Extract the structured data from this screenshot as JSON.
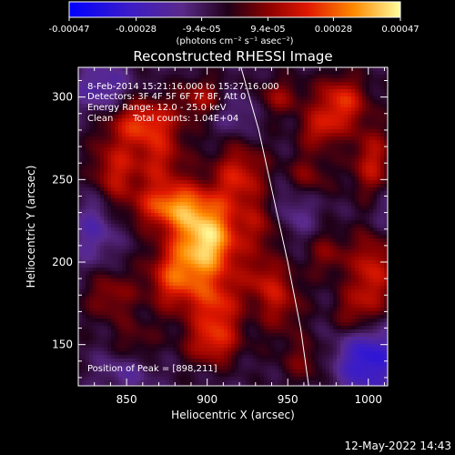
{
  "chart_data": {
    "type": "heatmap",
    "title": "Reconstructed RHESSI Image",
    "xlabel": "Heliocentric X (arcsec)",
    "ylabel": "Heliocentric Y (arcsec)",
    "xlim": [
      820,
      1012
    ],
    "ylim": [
      125,
      318
    ],
    "x_ticks": [
      850,
      900,
      950,
      1000
    ],
    "y_ticks": [
      150,
      200,
      250,
      300
    ],
    "colorbar": {
      "ticks": [
        "-0.00047",
        "-0.00028",
        "-9.4e-05",
        "9.4e-05",
        "0.00028",
        "0.00047"
      ],
      "tick_values": [
        -0.00047,
        -0.00028,
        -9.4e-05,
        9.4e-05,
        0.00028,
        0.00047
      ],
      "range": [
        -0.00047,
        0.00047
      ],
      "unit_label": "(photons cm⁻² s⁻¹ asec⁻²)"
    },
    "annotations": [
      "8-Feb-2014 15:21:16.000 to 15:27:16.000",
      "Detectors: 3F 4F 5F 6F 7F 8F, Att 0",
      "Energy Range: 12.0 - 25.0 keV",
      "Clean",
      "Total counts: 1.04E+04",
      "Position of Peak = [898,211]"
    ],
    "peak": {
      "x": 898,
      "y": 211
    },
    "limb_curve": [
      [
        921,
        318
      ],
      [
        932,
        280
      ],
      [
        941,
        240
      ],
      [
        950,
        200
      ],
      [
        958,
        160
      ],
      [
        963,
        125
      ]
    ],
    "sources": [
      {
        "x": 900,
        "y": 213,
        "amp": 0.00047,
        "sx": 14,
        "sy": 16
      },
      {
        "x": 878,
        "y": 234,
        "amp": 0.00034,
        "sx": 16,
        "sy": 10
      },
      {
        "x": 880,
        "y": 190,
        "amp": 0.00028,
        "sx": 12,
        "sy": 14
      },
      {
        "x": 906,
        "y": 172,
        "amp": 0.00026,
        "sx": 11,
        "sy": 14
      },
      {
        "x": 903,
        "y": 150,
        "amp": 0.0002,
        "sx": 12,
        "sy": 9
      },
      {
        "x": 860,
        "y": 285,
        "amp": 0.00028,
        "sx": 16,
        "sy": 10
      },
      {
        "x": 842,
        "y": 255,
        "amp": 0.00022,
        "sx": 10,
        "sy": 14
      },
      {
        "x": 870,
        "y": 262,
        "amp": 0.0002,
        "sx": 12,
        "sy": 12
      },
      {
        "x": 920,
        "y": 252,
        "amp": 0.00024,
        "sx": 12,
        "sy": 14
      },
      {
        "x": 935,
        "y": 222,
        "amp": 0.00016,
        "sx": 10,
        "sy": 12
      },
      {
        "x": 945,
        "y": 176,
        "amp": 0.00018,
        "sx": 10,
        "sy": 14
      },
      {
        "x": 933,
        "y": 190,
        "amp": 0.00014,
        "sx": 9,
        "sy": 10
      },
      {
        "x": 983,
        "y": 297,
        "amp": 0.00028,
        "sx": 11,
        "sy": 11
      },
      {
        "x": 970,
        "y": 280,
        "amp": 0.0002,
        "sx": 9,
        "sy": 8
      },
      {
        "x": 1002,
        "y": 260,
        "amp": 0.00022,
        "sx": 9,
        "sy": 16
      },
      {
        "x": 962,
        "y": 252,
        "amp": 0.00016,
        "sx": 10,
        "sy": 10
      },
      {
        "x": 1003,
        "y": 195,
        "amp": 0.00024,
        "sx": 9,
        "sy": 18
      },
      {
        "x": 992,
        "y": 168,
        "amp": 0.00018,
        "sx": 10,
        "sy": 12
      },
      {
        "x": 975,
        "y": 205,
        "amp": 0.00014,
        "sx": 10,
        "sy": 10
      },
      {
        "x": 840,
        "y": 180,
        "amp": 0.00016,
        "sx": 11,
        "sy": 11
      },
      {
        "x": 855,
        "y": 150,
        "amp": 0.00012,
        "sx": 10,
        "sy": 10
      },
      {
        "x": 960,
        "y": 140,
        "amp": 0.00012,
        "sx": 10,
        "sy": 10
      },
      {
        "x": 897,
        "y": 300,
        "amp": 0.00018,
        "sx": 10,
        "sy": 8
      },
      {
        "x": 945,
        "y": 300,
        "amp": 0.00016,
        "sx": 10,
        "sy": 8
      },
      {
        "x": 1000,
        "y": 142,
        "amp": -0.0003,
        "sx": 14,
        "sy": 16
      },
      {
        "x": 835,
        "y": 305,
        "amp": -0.00016,
        "sx": 12,
        "sy": 12
      },
      {
        "x": 830,
        "y": 220,
        "amp": -0.00014,
        "sx": 10,
        "sy": 16
      },
      {
        "x": 952,
        "y": 232,
        "amp": -0.00012,
        "sx": 12,
        "sy": 14
      },
      {
        "x": 918,
        "y": 290,
        "amp": -0.0001,
        "sx": 10,
        "sy": 10
      },
      {
        "x": 850,
        "y": 135,
        "amp": -0.00012,
        "sx": 12,
        "sy": 10
      },
      {
        "x": 1008,
        "y": 230,
        "amp": -0.0001,
        "sx": 8,
        "sy": 12
      }
    ]
  },
  "footer": {
    "timestamp": "12-May-2022 14:43"
  }
}
